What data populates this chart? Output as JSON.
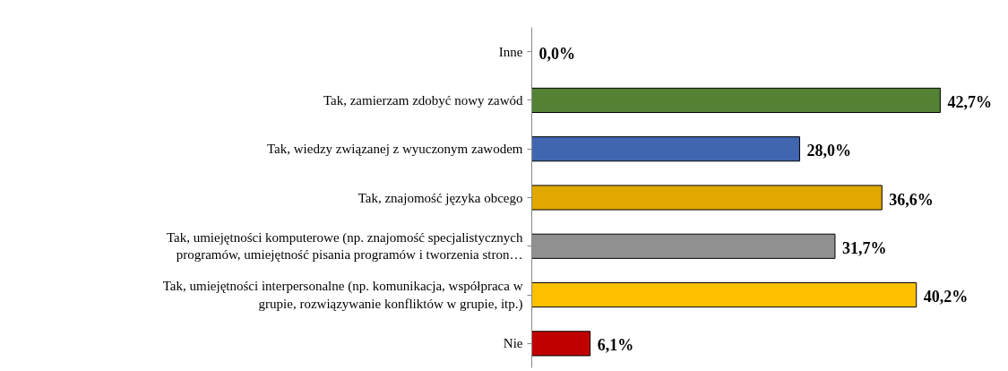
{
  "chart_data": {
    "type": "bar",
    "orientation": "horizontal",
    "grid": false,
    "categories": [
      "Inne",
      "Tak, zamierzam zdobyć nowy zawód",
      "Tak, wiedzy związanej z wyuczonym zawodem",
      "Tak, znajomość języka obcego",
      "Tak, umiejętności komputerowe (np. znajomość specjalistycznych\nprogramów, umiejętność pisania programów i tworzenia stron…",
      "Tak, umiejętności interpersonalne (np. komunikacja, współpraca w\ngrupie, rozwiązywanie konfliktów w grupie, itp.)",
      "Nie"
    ],
    "values": [
      0.0,
      42.7,
      28.0,
      36.6,
      31.7,
      40.2,
      6.1
    ],
    "value_labels": [
      "0,0%",
      "42,7%",
      "28,0%",
      "36,6%",
      "31,7%",
      "40,2%",
      "6,1%"
    ],
    "colors": [
      null,
      "#548235",
      "#4066b0",
      "#e0a800",
      "#909090",
      "#ffc000",
      "#c00000"
    ]
  }
}
